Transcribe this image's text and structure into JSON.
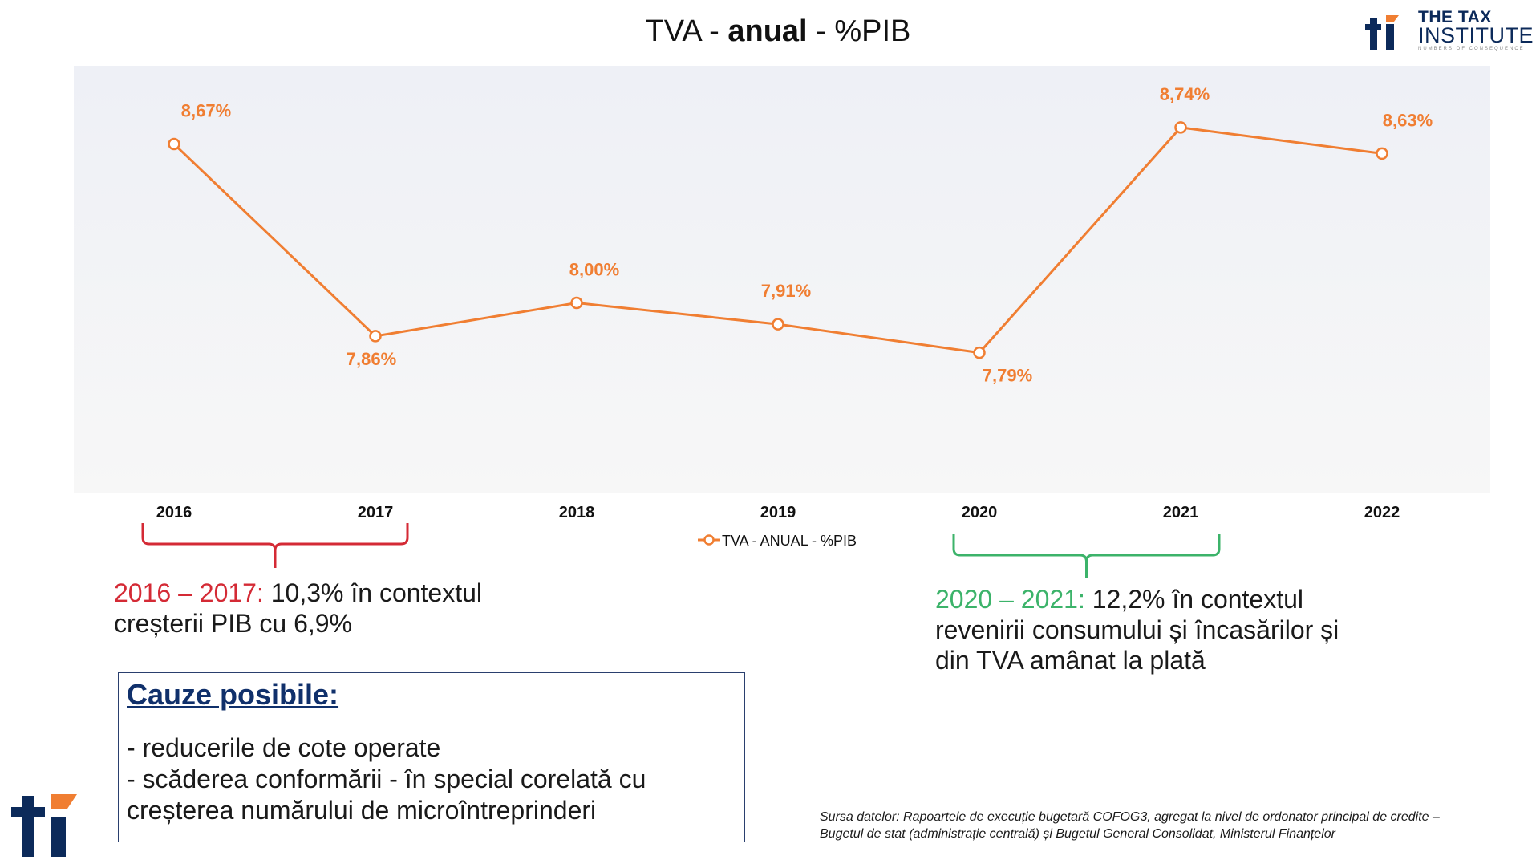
{
  "header": {
    "title_pre": "TVA - ",
    "title_bold": "anual",
    "title_post": " - %PIB",
    "logo_line1": "THE TAX",
    "logo_line2": "INSTITUTE",
    "logo_tagline": "NUMBERS OF CONSEQUENCE"
  },
  "chart_data": {
    "type": "line",
    "categories": [
      "2016",
      "2017",
      "2018",
      "2019",
      "2020",
      "2021",
      "2022"
    ],
    "series": [
      {
        "name": "TVA - ANUAL - %PIB",
        "values": [
          8.67,
          7.86,
          8.0,
          7.91,
          7.79,
          8.74,
          8.63
        ],
        "labels": [
          "8,67%",
          "7,86%",
          "8,00%",
          "7,91%",
          "7,79%",
          "8,74%",
          "8,63%"
        ]
      }
    ],
    "ylim": [
      7.2,
      9.0
    ],
    "grid": false,
    "legend_position": "bottom-center",
    "colors": {
      "line": "#f07e32",
      "plot_bg_top": "#eef0f6",
      "plot_bg_bottom": "#f7f7f7"
    }
  },
  "annotations": {
    "left": {
      "range": "2016 – 2017:",
      "line1": " 10,3% în contextul",
      "line2": "creșterii PIB cu 6,9%",
      "color": "#d42a35"
    },
    "right": {
      "range": "2020 – 2021:",
      "line1": " 12,2% în contextul",
      "line2": "revenirii consumului și încasărilor și",
      "line3": "din TVA amânat la plată",
      "color": "#3cb36a"
    }
  },
  "causes": {
    "title": "Cauze posibile:",
    "items": [
      "- reducerile de cote operate",
      "- scăderea conformării - în special corelată cu",
      "creșterea numărului de microîntreprinderi"
    ]
  },
  "source": {
    "line1": "Sursa datelor: Rapoartele de execuție bugetară COFOG3, agregat la nivel de ordonator principal de credite –",
    "line2": "Bugetul de stat (administrație centrală) și Bugetul General Consolidat, Ministerul Finanțelor"
  }
}
